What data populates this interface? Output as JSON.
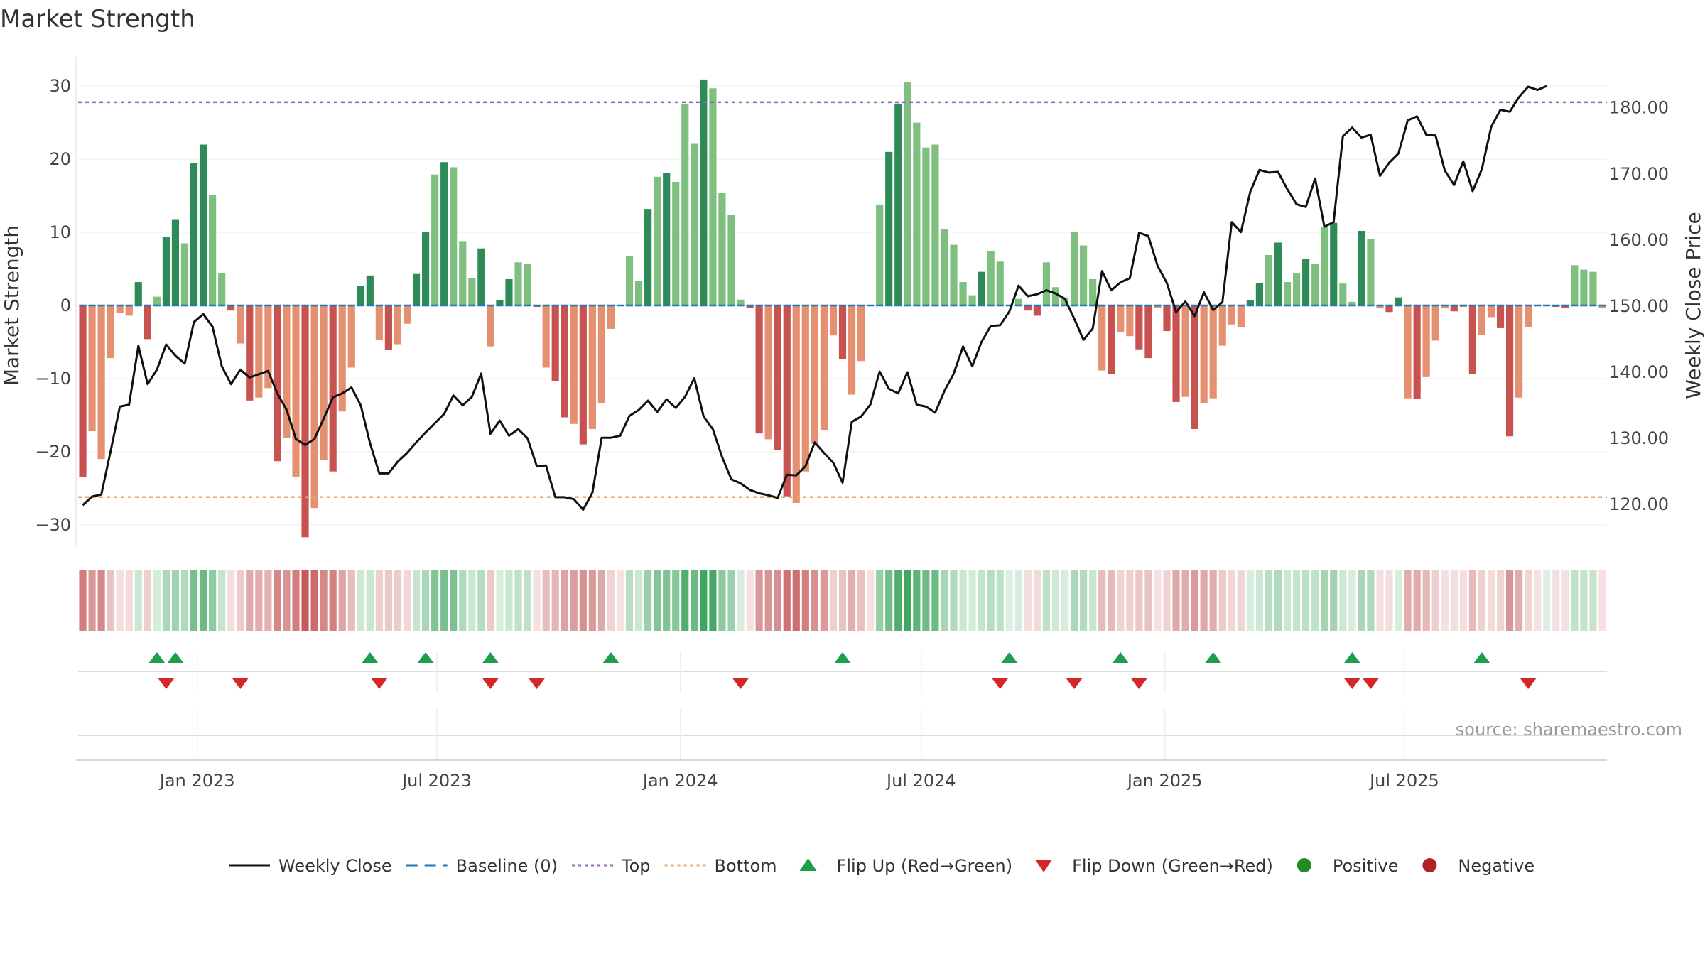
{
  "chart_data": {
    "type": "bar",
    "title": "Market Strength",
    "ylabel": "Market Strength",
    "y2label": "Weekly Close Price",
    "ylim": [
      -34,
      34
    ],
    "y2lim": [
      112.5,
      187.7
    ],
    "yticks": [
      "30",
      "20",
      "10",
      "0",
      "−10",
      "−20",
      "−30"
    ],
    "y2ticks": [
      "180.00",
      "170.00",
      "160.00",
      "150.00",
      "140.00",
      "130.00",
      "120.00"
    ],
    "top_level": 27.8,
    "bottom_level": -26.2,
    "baseline": 0,
    "start_date": "2022-10-03",
    "xtick_labels": [
      "Jan 2023",
      "Jul 2023",
      "Jan 2024",
      "Jul 2024",
      "Jan 2025",
      "Jul 2025"
    ],
    "source": "source: sharemaestro.com",
    "colors": {
      "pos_dark": "#2e8b57",
      "pos_light": "#7fbf7f",
      "neg_dark": "#c85250",
      "neg_light": "#e59070",
      "close": "#111111",
      "baseline": "#1f77b4",
      "top": "#9467bd",
      "bottom": "#e8a868",
      "flip_up": "#1e9e4a",
      "flip_down": "#d62728",
      "positive": "#228b22",
      "negative": "#b22222"
    },
    "strength": [
      -23.5,
      -17.2,
      -21,
      -7.2,
      -1,
      -1.4,
      3.2,
      -4.6,
      1.2,
      9.4,
      11.8,
      8.5,
      19.5,
      22,
      15.1,
      4.4,
      -0.7,
      -5.2,
      -13,
      -12.6,
      -11.3,
      -21.3,
      -18.1,
      -23.5,
      -31.7,
      -27.7,
      -21.1,
      -22.7,
      -14.5,
      -8.5,
      2.7,
      4.1,
      -4.7,
      -6.1,
      -5.3,
      -2.5,
      4.3,
      10,
      17.9,
      19.6,
      18.9,
      8.8,
      3.7,
      7.8,
      -5.6,
      0.7,
      3.6,
      5.9,
      5.7,
      -0.2,
      -8.5,
      -10.3,
      -15.3,
      -16.2,
      -19,
      -16.9,
      -13.4,
      -3.2,
      -0.1,
      6.8,
      3.3,
      13.2,
      17.6,
      18.1,
      16.9,
      27.5,
      22.1,
      30.9,
      29.7,
      15.4,
      12.4,
      0.8,
      -0.3,
      -17.5,
      -18.3,
      -19.8,
      -26.1,
      -27,
      -22.7,
      -18.9,
      -17.1,
      -4.1,
      -7.3,
      -12.2,
      -7.6,
      -0.1,
      13.8,
      21,
      27.6,
      30.6,
      25,
      21.6,
      22,
      10.4,
      8.3,
      3.2,
      1.4,
      4.6,
      7.4,
      6,
      0.1,
      0.9,
      -0.7,
      -1.4,
      5.9,
      2.5,
      1.1,
      10.1,
      8.2,
      3.6,
      -8.9,
      -9.4,
      -3.7,
      -4.2,
      -6,
      -7.2,
      -0.3,
      -3.5,
      -13.2,
      -12.5,
      -16.9,
      -13.4,
      -12.7,
      -5.5,
      -2.6,
      -3,
      0.7,
      3.1,
      6.9,
      8.6,
      3.2,
      4.4,
      6.4,
      5.7,
      10.7,
      11.3,
      3,
      0.5,
      10.2,
      9.1,
      -0.4,
      -0.9,
      1.1,
      -12.7,
      -12.8,
      -9.8,
      -4.8,
      -0.4,
      -0.8,
      -0.2,
      -9.4,
      -4,
      -1.6,
      -3.1,
      -17.9,
      -12.6,
      -3,
      -0.1,
      0.1,
      -0.2,
      -0.3,
      5.5,
      4.9,
      4.6,
      -0.4
    ],
    "close": [
      119.9,
      121.2,
      121.5,
      128,
      134.8,
      135.1,
      144,
      138.2,
      140.4,
      144.2,
      142.5,
      141.3,
      147.6,
      148.8,
      146.9,
      140.9,
      138.2,
      140.4,
      139.2,
      139.7,
      140.2,
      136.8,
      134.3,
      129.9,
      129,
      129.9,
      133,
      136.2,
      136.8,
      137.7,
      135,
      129.3,
      124.7,
      124.7,
      126.5,
      127.8,
      129.4,
      130.9,
      132.3,
      133.7,
      136.5,
      135,
      136.3,
      139.8,
      130.7,
      132.7,
      130.4,
      131.4,
      130,
      125.8,
      125.9,
      121.1,
      121.1,
      120.8,
      119.2,
      121.8,
      130.1,
      130.1,
      130.4,
      133.4,
      134.3,
      135.7,
      134,
      135.9,
      134.6,
      136.3,
      139.1,
      133.3,
      131.4,
      127.2,
      123.8,
      123.2,
      122.2,
      121.7,
      121.4,
      121,
      124.5,
      124.4,
      125.8,
      129.4,
      127.8,
      126.3,
      123.3,
      132.5,
      133.3,
      135.1,
      140.1,
      137.5,
      136.8,
      140,
      135.1,
      134.8,
      133.9,
      137.2,
      139.8,
      143.9,
      140.9,
      144.6,
      147,
      147.1,
      149.2,
      153.1,
      151.5,
      151.8,
      152.4,
      151.9,
      151.1,
      148.1,
      144.9,
      146.6,
      155.3,
      152.4,
      153.6,
      154.2,
      161.1,
      160.6,
      156.1,
      153.5,
      149.1,
      150.7,
      148.5,
      152.1,
      149.4,
      150.6,
      162.7,
      161.2,
      167.3,
      170.6,
      170.2,
      170.3,
      167.7,
      165.4,
      165,
      169.3,
      162,
      162.7,
      175.7,
      177,
      175.5,
      175.9,
      169.7,
      171.7,
      173.1,
      178.1,
      178.7,
      175.9,
      175.8,
      170.5,
      168.3,
      171.9,
      167.4,
      170.7,
      177.1,
      179.7,
      179.4,
      181.6,
      183.2,
      182.7,
      183.3
    ]
  },
  "flip_up_weeks": [
    8,
    10,
    31,
    37,
    44,
    57,
    82,
    100,
    112,
    122,
    137,
    151
  ],
  "flip_down_weeks": [
    9,
    17,
    32,
    44,
    49,
    71,
    99,
    107,
    114,
    137,
    139,
    156
  ],
  "legend": [
    {
      "kind": "line",
      "label": "Weekly Close",
      "color": "#111111"
    },
    {
      "kind": "dash",
      "label": "Baseline (0)",
      "color": "#1f77b4"
    },
    {
      "kind": "dot",
      "label": "Top",
      "color": "#9467bd"
    },
    {
      "kind": "dot",
      "label": "Bottom",
      "color": "#e8a868"
    },
    {
      "kind": "tri-up",
      "label": "Flip Up (Red→Green)",
      "color": "#1e9e4a"
    },
    {
      "kind": "tri-down",
      "label": "Flip Down (Green→Red)",
      "color": "#d62728"
    },
    {
      "kind": "circle",
      "label": "Positive",
      "color": "#228b22"
    },
    {
      "kind": "circle",
      "label": "Negative",
      "color": "#b22222"
    }
  ]
}
